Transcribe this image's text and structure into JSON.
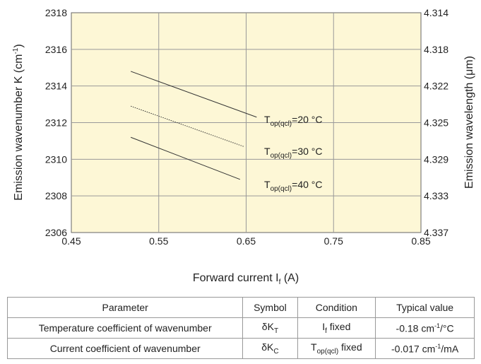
{
  "chart_data": {
    "type": "line",
    "xlabel": "Forward current I",
    "xlabel_sub": "f",
    "xlabel_unit": " (A)",
    "ylabel_left": "Emission wavenumber K (cm",
    "ylabel_left_sup": "-1",
    "ylabel_left_close": ")",
    "ylabel_right": "Emission wavelength (μm)",
    "xlim": [
      0.45,
      0.85
    ],
    "ylim": [
      2306,
      2318
    ],
    "x_ticks": [
      "0.45",
      "0.55",
      "0.65",
      "0.75",
      "0.85"
    ],
    "y_ticks": [
      "2306",
      "2308",
      "2310",
      "2312",
      "2314",
      "2316",
      "2318"
    ],
    "y2_ticks": [
      "4.337",
      "4.333",
      "4.329",
      "4.325",
      "4.322",
      "4.318",
      "4.314"
    ],
    "grid": true,
    "plot_background": "#fdf7d6",
    "series": [
      {
        "name": "T_op(qcl)=20 °C",
        "label_main": "T",
        "label_sub": "op(qcl)",
        "label_rest": "=20 °C",
        "style": "solid",
        "x": [
          0.518,
          0.662
        ],
        "y": [
          2314.8,
          2312.3
        ]
      },
      {
        "name": "T_op(qcl)=30 °C",
        "label_main": "T",
        "label_sub": "op(qcl)",
        "label_rest": "=30 °C",
        "style": "dotted",
        "x": [
          0.518,
          0.647
        ],
        "y": [
          2312.9,
          2310.7
        ]
      },
      {
        "name": "T_op(qcl)=40 °C",
        "label_main": "T",
        "label_sub": "op(qcl)",
        "label_rest": "=40 °C",
        "style": "solid",
        "x": [
          0.518,
          0.643
        ],
        "y": [
          2311.2,
          2308.9
        ]
      }
    ]
  },
  "table": {
    "headers": [
      "Parameter",
      "Symbol",
      "Condition",
      "Typical value"
    ],
    "rows": [
      {
        "parameter": "Temperature coefficient of wavenumber",
        "symbol_main": "δK",
        "symbol_sub": "T",
        "cond_main": "I",
        "cond_sub": "f",
        "cond_rest": " fixed",
        "value_main": "-0.18 cm",
        "value_sup": "-1",
        "value_rest": "/°C"
      },
      {
        "parameter": "Current coefficient of wavenumber",
        "symbol_main": "δK",
        "symbol_sub": "C",
        "cond_main": "T",
        "cond_sub": "op(qcl)",
        "cond_rest": " fixed",
        "value_main": "-0.017 cm",
        "value_sup": "-1",
        "value_rest": "/mA"
      }
    ]
  }
}
